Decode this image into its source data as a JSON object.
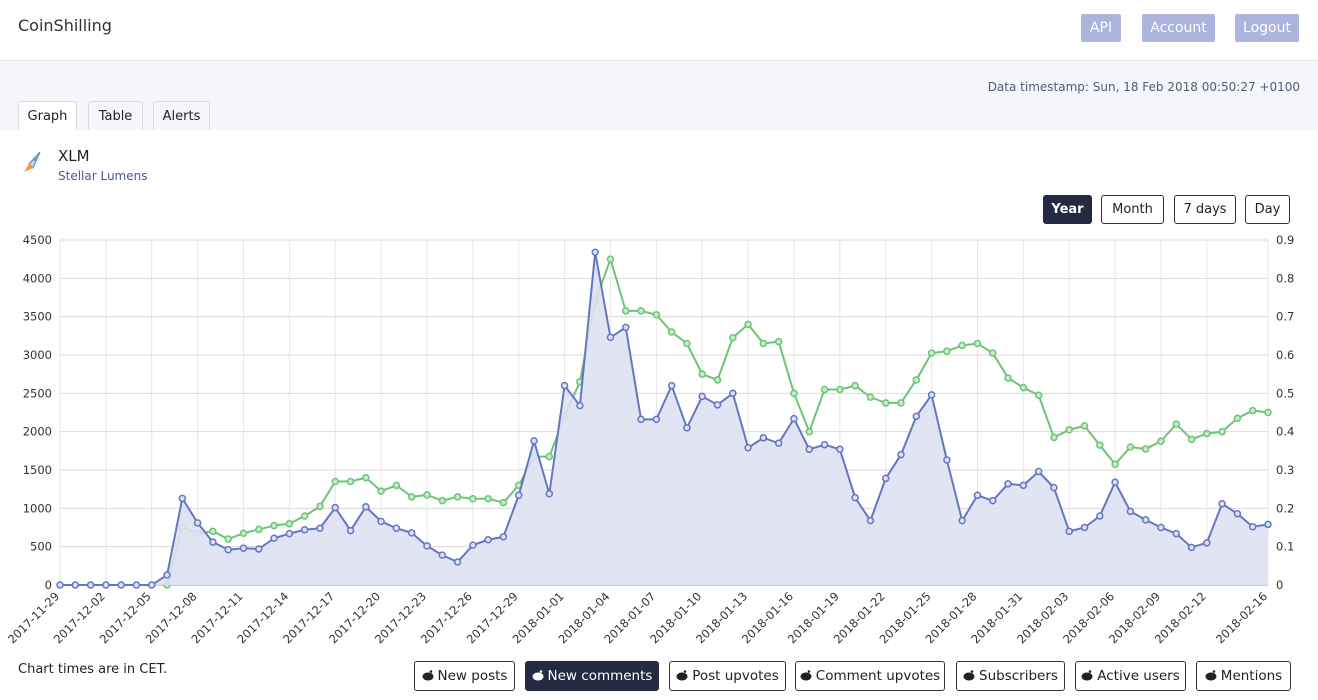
{
  "header": {
    "brand": "CoinShilling",
    "nav": [
      "API",
      "Account",
      "Logout"
    ]
  },
  "timestamp": "Data timestamp: Sun, 18 Feb 2018 00:50:27 +0100",
  "tabs": [
    "Graph",
    "Table",
    "Alerts"
  ],
  "coin": {
    "symbol": "XLM",
    "name": "Stellar Lumens"
  },
  "ranges": [
    "Year",
    "Month",
    "7 days",
    "Day"
  ],
  "chart_data": {
    "type": "line",
    "categories": [
      "2017-11-29",
      null,
      null,
      "2017-12-02",
      null,
      null,
      "2017-12-05",
      null,
      null,
      "2017-12-08",
      null,
      null,
      "2017-12-11",
      null,
      null,
      "2017-12-14",
      null,
      null,
      "2017-12-17",
      null,
      null,
      "2017-12-20",
      null,
      null,
      "2017-12-23",
      null,
      null,
      "2017-12-26",
      null,
      null,
      "2017-12-29",
      null,
      null,
      "2018-01-01",
      null,
      null,
      "2018-01-04",
      null,
      null,
      "2018-01-07",
      null,
      null,
      "2018-01-10",
      null,
      null,
      "2018-01-13",
      null,
      null,
      "2018-01-16",
      null,
      null,
      "2018-01-19",
      null,
      null,
      "2018-01-22",
      null,
      null,
      "2018-01-25",
      null,
      null,
      "2018-01-28",
      null,
      null,
      "2018-01-31",
      null,
      null,
      "2018-02-03",
      null,
      null,
      "2018-02-06",
      null,
      null,
      "2018-02-09",
      null,
      null,
      "2018-02-12",
      null,
      null,
      null,
      "2018-02-16"
    ],
    "series": [
      {
        "color": "#6577c0",
        "fill": "#dde1f2",
        "area": true,
        "values": [
          0,
          0,
          0,
          0,
          0,
          0,
          0,
          130,
          1130,
          810,
          560,
          460,
          480,
          470,
          610,
          670,
          720,
          740,
          1010,
          710,
          1020,
          830,
          740,
          680,
          510,
          390,
          300,
          520,
          590,
          630,
          1170,
          1880,
          1190,
          2600,
          2340,
          4340,
          3230,
          3360,
          2160,
          2160,
          2600,
          2050,
          2460,
          2350,
          2500,
          1790,
          1920,
          1850,
          2170,
          1770,
          1830,
          1770,
          1140,
          840,
          1390,
          1700,
          2200,
          2480,
          1630,
          840,
          1170,
          1100,
          1320,
          1300,
          1480,
          1270,
          700,
          750,
          900,
          1340,
          960,
          850,
          750,
          670,
          490,
          550,
          1060,
          930,
          760,
          790
        ]
      },
      {
        "color": "#6cc576",
        "axis": "y2",
        "values": [
          null,
          null,
          null,
          null,
          null,
          null,
          null,
          0,
          0.15,
          0.135,
          0.14,
          0.12,
          0.135,
          0.145,
          0.155,
          0.16,
          0.18,
          0.205,
          0.27,
          0.27,
          0.28,
          0.245,
          0.26,
          0.23,
          0.235,
          0.22,
          0.23,
          0.225,
          0.225,
          0.215,
          0.26,
          0.335,
          0.335,
          0.44,
          0.53,
          0.74,
          0.85,
          0.715,
          0.715,
          0.705,
          0.66,
          0.63,
          0.55,
          0.535,
          0.645,
          0.68,
          0.63,
          0.635,
          0.5,
          0.4,
          0.51,
          0.51,
          0.52,
          0.49,
          0.475,
          0.475,
          0.535,
          0.605,
          0.61,
          0.625,
          0.63,
          0.605,
          0.54,
          0.515,
          0.495,
          0.385,
          0.405,
          0.415,
          0.365,
          0.315,
          0.36,
          0.355,
          0.375,
          0.42,
          0.38,
          0.395,
          0.4,
          0.435,
          0.455,
          0.45
        ]
      }
    ],
    "ylim": [
      0,
      4500
    ],
    "yticks": [
      0,
      500,
      1000,
      1500,
      2000,
      2500,
      3000,
      3500,
      4000,
      4500
    ],
    "y2lim": [
      0,
      0.9
    ],
    "y2ticks": [
      0,
      0.1,
      0.2,
      0.3,
      0.4,
      0.5,
      0.6,
      0.7,
      0.8,
      0.9
    ],
    "grid": true
  },
  "note": "Chart times are in CET.",
  "metrics": [
    "New posts",
    "New comments",
    "Post upvotes",
    "Comment upvotes",
    "Subscribers",
    "Active users",
    "Mentions"
  ]
}
